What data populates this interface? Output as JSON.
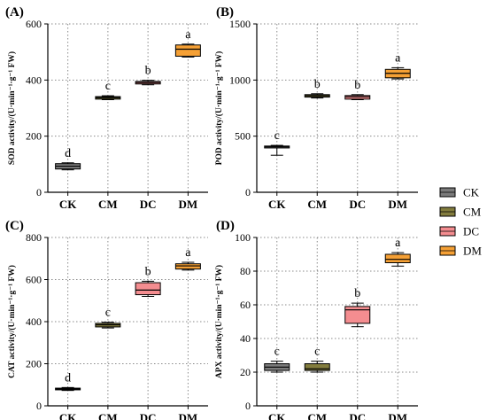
{
  "legend": [
    {
      "name": "CK",
      "color": "#7b7b7b"
    },
    {
      "name": "CM",
      "color": "#837d3e"
    },
    {
      "name": "DC",
      "color": "#f48d90"
    },
    {
      "name": "DM",
      "color": "#f5a035"
    }
  ],
  "chart_data": [
    {
      "type": "box",
      "panel": "(A)",
      "ylabel": "SOD activity/(U·min⁻¹·g⁻¹ FW)",
      "ylim": [
        0,
        600
      ],
      "yticks": [
        0,
        200,
        400,
        600
      ],
      "grid": true,
      "categories": [
        "CK",
        "CM",
        "DC",
        "DM"
      ],
      "series": [
        {
          "name": "CK",
          "min": 80,
          "q1": 83,
          "median": 93,
          "q3": 102,
          "max": 105,
          "letter": "d"
        },
        {
          "name": "CM",
          "min": 330,
          "q1": 332,
          "median": 337,
          "q3": 341,
          "max": 344,
          "letter": "c"
        },
        {
          "name": "DC",
          "min": 383,
          "q1": 386,
          "median": 391,
          "q3": 395,
          "max": 399,
          "letter": "b"
        },
        {
          "name": "DM",
          "min": 482,
          "q1": 485,
          "median": 510,
          "q3": 525,
          "max": 528,
          "letter": "a"
        }
      ]
    },
    {
      "type": "box",
      "panel": "(B)",
      "ylabel": "POD activity/(U·min⁻¹·g⁻¹ FW)",
      "ylim": [
        0,
        1500
      ],
      "yticks": [
        0,
        500,
        1000,
        1500
      ],
      "grid": true,
      "categories": [
        "CK",
        "CM",
        "DC",
        "DM"
      ],
      "series": [
        {
          "name": "CK",
          "min": 330,
          "q1": 395,
          "median": 405,
          "q3": 412,
          "max": 418,
          "letter": "c"
        },
        {
          "name": "CM",
          "min": 840,
          "q1": 848,
          "median": 860,
          "q3": 870,
          "max": 878,
          "letter": "b"
        },
        {
          "name": "DC",
          "min": 825,
          "q1": 830,
          "median": 850,
          "q3": 862,
          "max": 870,
          "letter": "b"
        },
        {
          "name": "DM",
          "min": 1010,
          "q1": 1020,
          "median": 1060,
          "q3": 1095,
          "max": 1110,
          "letter": "a"
        }
      ]
    },
    {
      "type": "box",
      "panel": "(C)",
      "ylabel": "CAT activity/(U·min⁻¹·g⁻¹ FW)",
      "ylim": [
        0,
        800
      ],
      "yticks": [
        0,
        200,
        400,
        600,
        800
      ],
      "grid": true,
      "categories": [
        "CK",
        "CM",
        "DC",
        "DM"
      ],
      "series": [
        {
          "name": "CK",
          "min": 73,
          "q1": 76,
          "median": 80,
          "q3": 84,
          "max": 87,
          "letter": "d"
        },
        {
          "name": "CM",
          "min": 370,
          "q1": 375,
          "median": 385,
          "q3": 392,
          "max": 397,
          "letter": "c"
        },
        {
          "name": "DC",
          "min": 520,
          "q1": 528,
          "median": 550,
          "q3": 585,
          "max": 592,
          "letter": "b"
        },
        {
          "name": "DM",
          "min": 645,
          "q1": 650,
          "median": 665,
          "q3": 675,
          "max": 682,
          "letter": "a"
        }
      ]
    },
    {
      "type": "box",
      "panel": "(D)",
      "ylabel": "APX activity/(U·min⁻¹·g⁻¹ FW)",
      "ylim": [
        0,
        100
      ],
      "yticks": [
        0,
        20,
        40,
        60,
        80,
        100
      ],
      "grid": true,
      "categories": [
        "CK",
        "CM",
        "DC",
        "DM"
      ],
      "series": [
        {
          "name": "CK",
          "min": 20,
          "q1": 21,
          "median": 23,
          "q3": 25,
          "max": 26.5,
          "letter": "c"
        },
        {
          "name": "CM",
          "min": 20,
          "q1": 21,
          "median": 22,
          "q3": 25,
          "max": 26.5,
          "letter": "c"
        },
        {
          "name": "DC",
          "min": 47,
          "q1": 49,
          "median": 57,
          "q3": 59,
          "max": 61,
          "letter": "b"
        },
        {
          "name": "DM",
          "min": 83,
          "q1": 85,
          "median": 87,
          "q3": 90,
          "max": 91,
          "letter": "a"
        }
      ]
    }
  ]
}
